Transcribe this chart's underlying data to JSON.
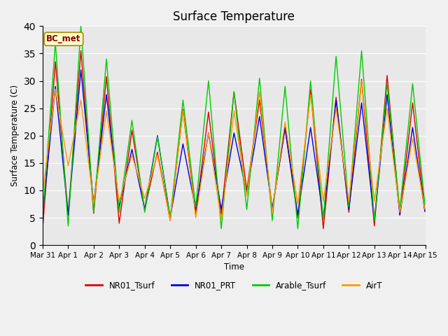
{
  "title": "Surface Temperature",
  "ylabel": "Surface Temperature (C)",
  "xlabel": "Time",
  "annotation": "BC_met",
  "ylim": [
    0,
    40
  ],
  "background_color": "#e8e8e8",
  "legend_entries": [
    "NR01_Tsurf",
    "NR01_PRT",
    "Arable_Tsurf",
    "AirT"
  ],
  "line_colors": [
    "#dd0000",
    "#0000dd",
    "#00cc00",
    "#ff9900"
  ],
  "x_tick_labels": [
    "Mar 31",
    "Apr 1",
    "Apr 2",
    "Apr 3",
    "Apr 4",
    "Apr 5",
    "Apr 6",
    "Apr 7",
    "Apr 8",
    "Apr 9",
    "Apr 10",
    "Apr 11",
    "Apr 12",
    "Apr 13",
    "Apr 14",
    "Apr 15"
  ],
  "num_days": 15,
  "pts_per_day": 48,
  "day_peaks_NR01_Tsurf": [
    33.5,
    35.5,
    30.8,
    21.0,
    17.0,
    24.8,
    24.3,
    28.0,
    26.5,
    21.3,
    28.4,
    27.0,
    30.3,
    31.0,
    26.0
  ],
  "day_troughs_NR01_Tsurf": [
    3.0,
    5.5,
    5.8,
    4.0,
    6.5,
    4.5,
    5.5,
    5.5,
    10.0,
    6.5,
    5.0,
    3.0,
    6.0,
    3.5,
    5.5
  ],
  "day_peaks_NR01_PRT": [
    29.0,
    32.0,
    27.5,
    17.5,
    20.0,
    18.5,
    20.5,
    20.5,
    23.5,
    21.5,
    21.5,
    26.5,
    26.0,
    27.5,
    21.5
  ],
  "day_troughs_NR01_PRT": [
    5.5,
    5.5,
    7.5,
    7.0,
    6.5,
    5.0,
    6.5,
    6.5,
    9.5,
    6.5,
    5.5,
    5.0,
    6.5,
    4.5,
    5.5
  ],
  "day_peaks_Arable": [
    37.0,
    40.0,
    34.0,
    22.8,
    19.8,
    26.5,
    30.0,
    28.0,
    30.5,
    29.0,
    30.0,
    34.5,
    35.5,
    29.5,
    29.5
  ],
  "day_troughs_Arable": [
    5.0,
    3.5,
    6.0,
    6.0,
    6.0,
    5.0,
    7.0,
    3.0,
    6.5,
    4.5,
    3.0,
    4.5,
    7.0,
    4.5,
    6.5
  ],
  "day_peaks_AirT": [
    28.5,
    26.5,
    24.5,
    16.5,
    16.5,
    24.5,
    20.5,
    24.5,
    28.0,
    22.5,
    27.5,
    25.0,
    30.0,
    25.0,
    19.5
  ],
  "day_troughs_AirT": [
    9.5,
    14.5,
    7.5,
    8.0,
    8.5,
    4.5,
    5.0,
    4.5,
    9.0,
    6.0,
    7.5,
    8.0,
    8.0,
    8.0,
    6.0
  ]
}
